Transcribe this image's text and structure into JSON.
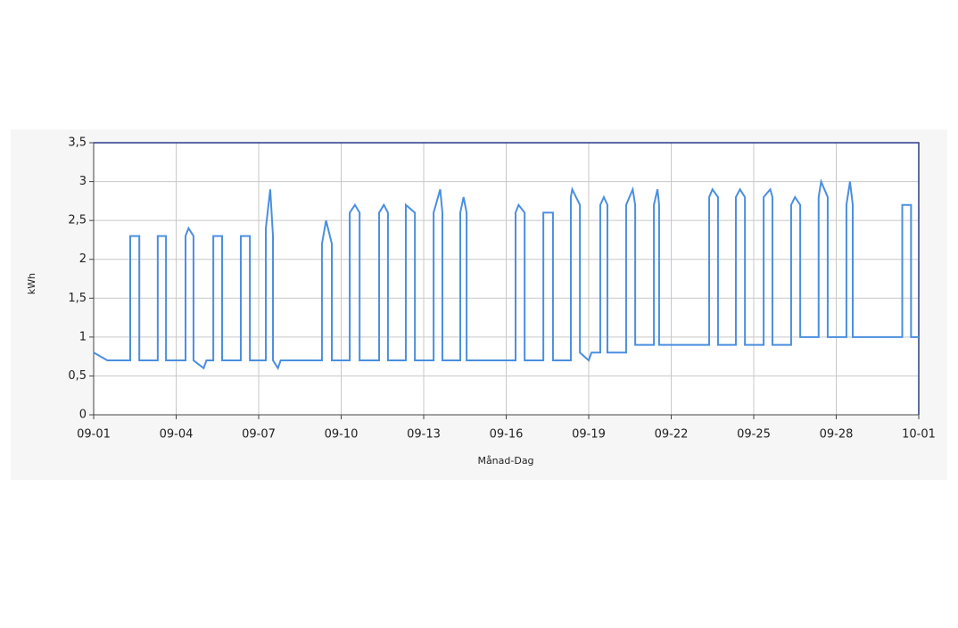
{
  "chart_data": {
    "type": "line",
    "x_label": "Månad-Dag",
    "y_label": "kWh",
    "color": "#4a8fe0",
    "grid": true,
    "xlim": [
      0,
      30
    ],
    "xticks": [
      {
        "value": 0,
        "label": "09-01"
      },
      {
        "value": 3,
        "label": "09-04"
      },
      {
        "value": 6,
        "label": "09-07"
      },
      {
        "value": 9,
        "label": "09-10"
      },
      {
        "value": 12,
        "label": "09-13"
      },
      {
        "value": 15,
        "label": "09-16"
      },
      {
        "value": 18,
        "label": "09-19"
      },
      {
        "value": 21,
        "label": "09-22"
      },
      {
        "value": 24,
        "label": "09-25"
      },
      {
        "value": 27,
        "label": "09-28"
      },
      {
        "value": 30,
        "label": "10-01"
      }
    ],
    "ylim": [
      0,
      3.5
    ],
    "yticks": [
      0,
      {
        "value": 0.5,
        "label": "0,5"
      },
      1,
      {
        "value": 1.5,
        "label": "1,5"
      },
      2,
      {
        "value": 2.5,
        "label": "2,5"
      },
      3,
      {
        "value": 3.5,
        "label": "3,5"
      }
    ],
    "x": [
      0,
      0.5,
      1.33,
      1.33,
      1.66,
      1.66,
      2.33,
      2.33,
      2.63,
      2.63,
      3.34,
      3.34,
      3.45,
      3.63,
      3.63,
      4.0,
      4.1,
      4.35,
      4.35,
      4.67,
      4.67,
      5.35,
      5.35,
      5.68,
      5.68,
      6.26,
      6.26,
      6.42,
      6.52,
      6.52,
      6.7,
      6.8,
      8.3,
      8.3,
      8.45,
      8.66,
      8.66,
      9.31,
      9.31,
      9.5,
      9.67,
      9.67,
      10.38,
      10.38,
      10.55,
      10.7,
      10.7,
      11.35,
      11.35,
      11.68,
      11.68,
      12.36,
      12.36,
      12.6,
      12.68,
      12.68,
      13.33,
      13.33,
      13.45,
      13.56,
      13.56,
      15.34,
      15.34,
      15.45,
      15.67,
      15.67,
      16.35,
      16.35,
      16.7,
      16.7,
      17.35,
      17.35,
      17.4,
      17.68,
      17.68,
      18.0,
      18.1,
      18.42,
      18.42,
      18.55,
      18.68,
      18.68,
      19.36,
      19.36,
      19.6,
      19.69,
      19.69,
      20.37,
      20.37,
      20.5,
      20.56,
      20.56,
      22.38,
      22.38,
      22.5,
      22.7,
      22.7,
      23.35,
      23.35,
      23.5,
      23.68,
      23.68,
      24.36,
      24.36,
      24.6,
      24.68,
      24.68,
      25.36,
      25.36,
      25.5,
      25.69,
      25.69,
      26.36,
      26.36,
      26.45,
      26.69,
      26.69,
      27.37,
      27.37,
      27.5,
      27.6,
      27.6,
      29.4,
      29.4,
      29.72,
      29.72,
      30
    ],
    "values": [
      0.8,
      0.7,
      0.7,
      2.3,
      2.3,
      0.7,
      0.7,
      2.3,
      2.3,
      0.7,
      0.7,
      2.3,
      2.4,
      2.3,
      0.7,
      0.6,
      0.7,
      0.7,
      2.3,
      2.3,
      0.7,
      0.7,
      2.3,
      2.3,
      0.7,
      0.7,
      2.4,
      2.9,
      2.3,
      0.7,
      0.6,
      0.7,
      0.7,
      2.2,
      2.5,
      2.2,
      0.7,
      0.7,
      2.6,
      2.7,
      2.6,
      0.7,
      0.7,
      2.6,
      2.7,
      2.6,
      0.7,
      0.7,
      2.7,
      2.6,
      0.7,
      0.7,
      2.6,
      2.9,
      2.6,
      0.7,
      0.7,
      2.6,
      2.8,
      2.6,
      0.7,
      0.7,
      2.6,
      2.7,
      2.6,
      0.7,
      0.7,
      2.6,
      2.6,
      0.7,
      0.7,
      2.8,
      2.9,
      2.7,
      0.8,
      0.7,
      0.8,
      0.8,
      2.7,
      2.8,
      2.7,
      0.8,
      0.8,
      2.7,
      2.9,
      2.7,
      0.9,
      0.9,
      2.7,
      2.9,
      2.7,
      0.9,
      0.9,
      2.8,
      2.9,
      2.8,
      0.9,
      0.9,
      2.8,
      2.9,
      2.8,
      0.9,
      0.9,
      2.8,
      2.9,
      2.8,
      0.9,
      0.9,
      2.7,
      2.8,
      2.7,
      1,
      1,
      2.8,
      3.0,
      2.8,
      1,
      1,
      2.7,
      3.0,
      2.7,
      1,
      1,
      2.7,
      2.7,
      1,
      1
    ]
  }
}
